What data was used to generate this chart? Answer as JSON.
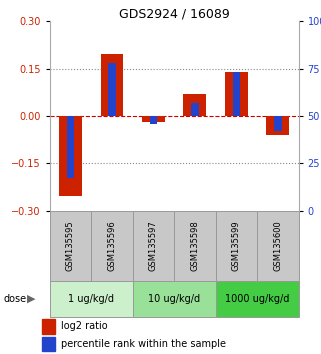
{
  "title": "GDS2924 / 16089",
  "samples": [
    "GSM135595",
    "GSM135596",
    "GSM135597",
    "GSM135598",
    "GSM135599",
    "GSM135600"
  ],
  "log2_ratio": [
    -0.255,
    0.195,
    -0.02,
    0.07,
    0.14,
    -0.06
  ],
  "percentile_rank": [
    17,
    78,
    46,
    57,
    73,
    42
  ],
  "ylim_left": [
    -0.3,
    0.3
  ],
  "yticks_left": [
    -0.3,
    -0.15,
    0,
    0.15,
    0.3
  ],
  "yticks_right": [
    0,
    25,
    50,
    75,
    100
  ],
  "bar_color_red": "#cc2200",
  "bar_color_blue": "#2244cc",
  "sample_box_color": "#c8c8c8",
  "hline_color": "#cc0000",
  "dotted_color": "#888888",
  "bar_width": 0.55,
  "blue_bar_width": 0.18,
  "dose_groups": [
    {
      "label": "1 ug/kg/d",
      "start": 0,
      "end": 2,
      "color": "#ccf0cc"
    },
    {
      "label": "10 ug/kg/d",
      "start": 2,
      "end": 4,
      "color": "#99e099"
    },
    {
      "label": "1000 ug/kg/d",
      "start": 4,
      "end": 6,
      "color": "#44cc44"
    }
  ],
  "title_fontsize": 9,
  "tick_fontsize": 7,
  "sample_fontsize": 6,
  "dose_fontsize": 7,
  "legend_fontsize": 7
}
